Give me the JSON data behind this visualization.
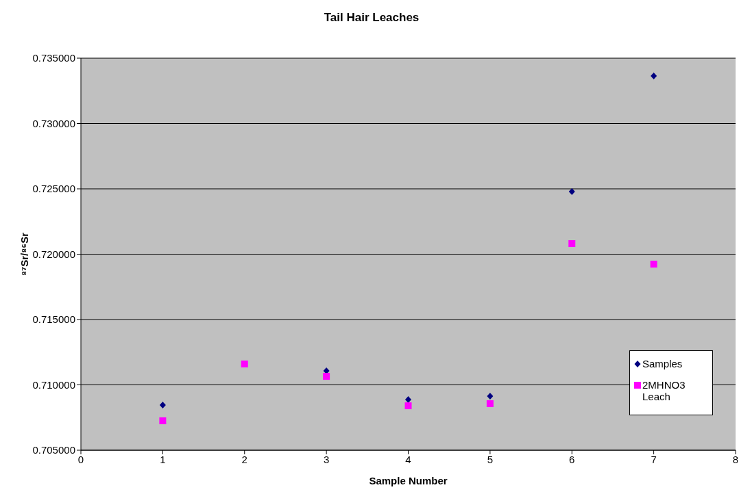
{
  "chart_data": {
    "type": "scatter",
    "title": "Tail Hair Leaches",
    "xlabel": "Sample Number",
    "ylabel": "⁸⁷Sr/⁸⁶Sr",
    "xlim": [
      0,
      8
    ],
    "xticks": [
      0,
      1,
      2,
      3,
      4,
      5,
      6,
      7,
      8
    ],
    "ylim": [
      0.705,
      0.735
    ],
    "yticks": [
      {
        "value": 0.705,
        "label": "0.705000"
      },
      {
        "value": 0.71,
        "label": "0.710000"
      },
      {
        "value": 0.715,
        "label": "0.715000"
      },
      {
        "value": 0.72,
        "label": "0.720000"
      },
      {
        "value": 0.725,
        "label": "0.725000"
      },
      {
        "value": 0.73,
        "label": "0.730000"
      },
      {
        "value": 0.735,
        "label": "0.735000"
      }
    ],
    "grid": "y",
    "legend": "right",
    "series": [
      {
        "name": "Samples",
        "color": "#000080",
        "marker": "diamond",
        "x": [
          1,
          2,
          3,
          4,
          5,
          6,
          7
        ],
        "values": [
          0.70846,
          null,
          0.71107,
          0.70887,
          0.70914,
          0.72479,
          0.73364
        ]
      },
      {
        "name": "2MHNO3 Leach",
        "color": "#ff00ff",
        "marker": "square",
        "x": [
          1,
          2,
          3,
          4,
          5,
          6,
          7
        ],
        "values": [
          0.70725,
          0.7116,
          0.71065,
          0.7084,
          0.70856,
          0.72081,
          0.71924
        ]
      }
    ]
  }
}
